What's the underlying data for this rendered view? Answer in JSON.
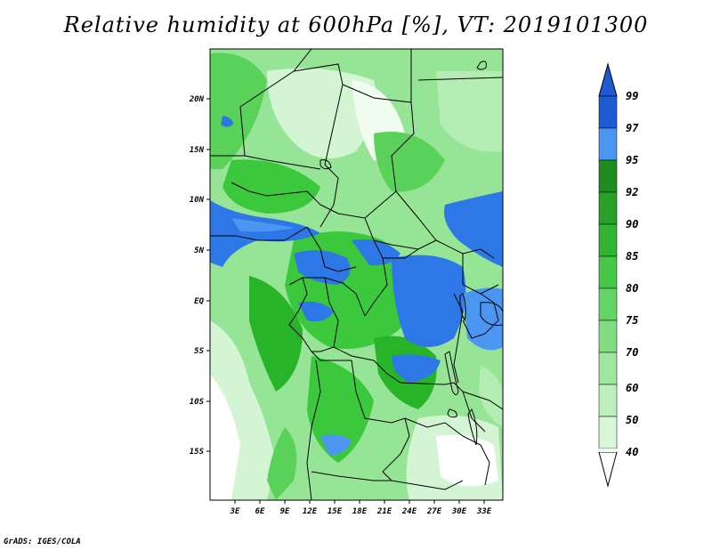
{
  "title": "Relative humidity at 600hPa [%], VT: 2019101300",
  "credit": "GrADS: IGES/COLA",
  "map": {
    "lon_labels": [
      "3E",
      "6E",
      "9E",
      "12E",
      "15E",
      "18E",
      "21E",
      "24E",
      "27E",
      "30E",
      "33E"
    ],
    "lat_labels": [
      "20N",
      "15N",
      "10N",
      "5N",
      "EQ",
      "5S",
      "10S",
      "15S"
    ]
  },
  "colorbar": {
    "levels": [
      "40",
      "50",
      "60",
      "70",
      "75",
      "80",
      "85",
      "90",
      "92",
      "95",
      "97",
      "99"
    ],
    "colors": [
      "#f0fcf0",
      "#d4f5d4",
      "#b4edb4",
      "#96e496",
      "#78dc78",
      "#5ad25a",
      "#3cc83c",
      "#28b428",
      "#1ea01e",
      "#4a96f0",
      "#2d78e6",
      "#1e5ad2"
    ],
    "under_color": "#ffffff",
    "over_color": "#1e5ad2"
  }
}
